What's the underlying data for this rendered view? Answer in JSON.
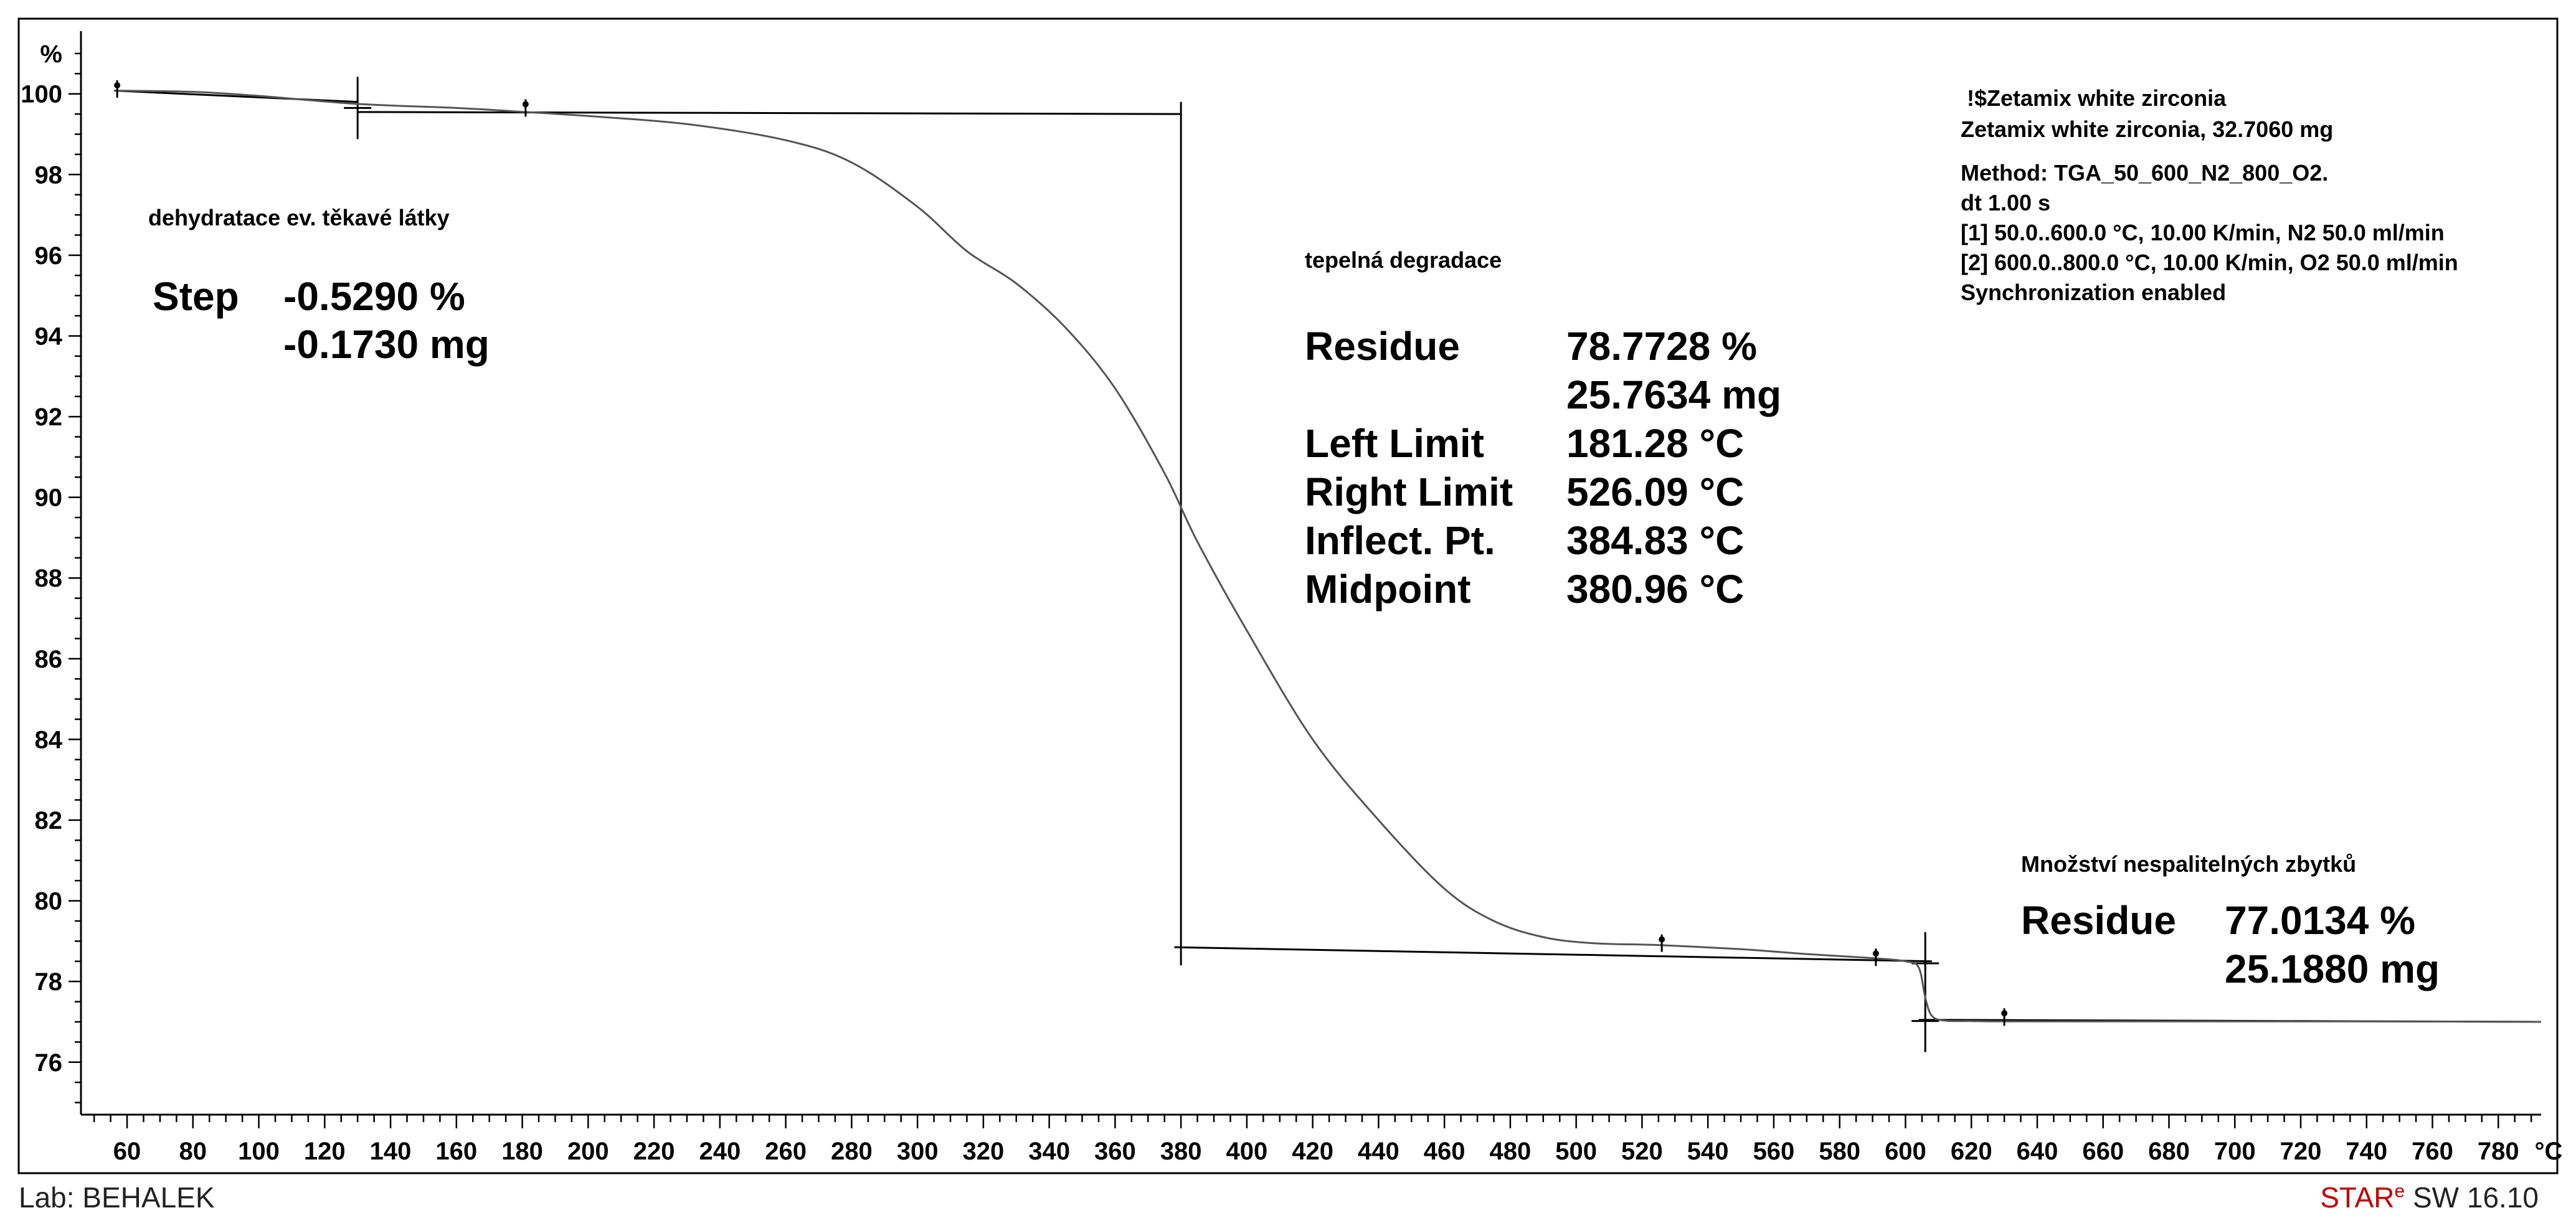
{
  "chart_data": {
    "type": "line",
    "x_unit": "°C",
    "y_unit": "%",
    "xlim": [
      46,
      793
    ],
    "ylim": [
      74.7,
      101.4
    ],
    "x_ticks": [
      60,
      80,
      100,
      120,
      140,
      160,
      180,
      200,
      220,
      240,
      260,
      280,
      300,
      320,
      340,
      360,
      380,
      400,
      420,
      440,
      460,
      480,
      500,
      520,
      540,
      560,
      580,
      600,
      620,
      640,
      660,
      680,
      700,
      720,
      740,
      760,
      780
    ],
    "y_ticks": [
      76,
      78,
      80,
      82,
      84,
      86,
      88,
      90,
      92,
      94,
      96,
      98,
      100
    ],
    "series": [
      {
        "name": "Zetamix white zirconia TGA",
        "x": [
          56,
          80,
          100,
          130,
          160,
          181,
          200,
          230,
          260,
          280,
          300,
          315,
          330,
          345,
          360,
          375,
          385,
          400,
          420,
          440,
          460,
          475,
          490,
          505,
          526,
          550,
          570,
          590,
          600,
          604,
          606,
          608,
          612,
          620,
          630,
          660,
          700,
          750,
          793
        ],
        "values": [
          100.08,
          100.05,
          99.95,
          99.75,
          99.65,
          99.55,
          99.45,
          99.25,
          98.85,
          98.3,
          97.2,
          96.1,
          95.3,
          94.2,
          92.7,
          90.6,
          88.9,
          86.7,
          84.0,
          82.0,
          80.3,
          79.5,
          79.1,
          78.95,
          78.9,
          78.8,
          78.68,
          78.58,
          78.5,
          78.35,
          77.6,
          77.15,
          77.03,
          77.02,
          77.01,
          77.01,
          77.01,
          77.01,
          77.0
        ]
      }
    ],
    "construction_lines": [
      {
        "x": [
          56,
          130
        ],
        "y": [
          100.08,
          99.8
        ]
      },
      {
        "x": [
          130,
          380
        ],
        "y": [
          99.55,
          99.5
        ]
      },
      {
        "x": [
          380,
          380
        ],
        "y": [
          99.8,
          78.4
        ]
      },
      {
        "x": [
          378,
          608
        ],
        "y": [
          78.85,
          78.5
        ]
      },
      {
        "x": [
          604,
          793
        ],
        "y": [
          77.05,
          77.0
        ]
      }
    ],
    "crosshairs": [
      {
        "x": 130,
        "y": 99.65
      },
      {
        "x": 606,
        "y": 78.45
      },
      {
        "x": 606,
        "y": 77.02
      }
    ],
    "markers": [
      {
        "x": 57,
        "y": 100.12
      },
      {
        "x": 181,
        "y": 99.65
      },
      {
        "x": 526,
        "y": 78.95
      },
      {
        "x": 591,
        "y": 78.6
      },
      {
        "x": 630,
        "y": 77.12
      }
    ],
    "annotations": {
      "step1": {
        "title": "dehydratace ev. těkavé látky",
        "label": "Step",
        "value1": "-0.5290 %",
        "value2": "-0.1730 mg"
      },
      "step2": {
        "title": "tepelná degradace",
        "rows": [
          {
            "label": "Residue",
            "value": "78.7728 %"
          },
          {
            "label": "",
            "value": "25.7634 mg"
          },
          {
            "label": "Left Limit",
            "value": "181.28 °C"
          },
          {
            "label": "Right Limit",
            "value": "526.09 °C"
          },
          {
            "label": "Inflect. Pt.",
            "value": "384.83 °C"
          },
          {
            "label": "Midpoint",
            "value": "380.96 °C"
          }
        ]
      },
      "step3": {
        "title": "Množství nespalitelných zbytků",
        "label": "Residue",
        "value1": "77.0134 %",
        "value2": "25.1880 mg"
      }
    },
    "info": [
      "!$Zetamix white zirconia",
      "Zetamix white zirconia, 32.7060 mg",
      "Method: TGA_50_600_N2_800_O2.",
      "dt 1.00 s",
      "[1] 50.0..600.0 °C, 10.00 K/min, N2 50.0 ml/min",
      "[2] 600.0..800.0 °C, 10.00 K/min, O2 50.0 ml/min",
      "Synchronization enabled"
    ]
  },
  "footer": {
    "lab": "Lab: BEHALEK",
    "software_prefix": "STAR",
    "software_sup": "e",
    "software_suffix": " SW 16.10"
  }
}
